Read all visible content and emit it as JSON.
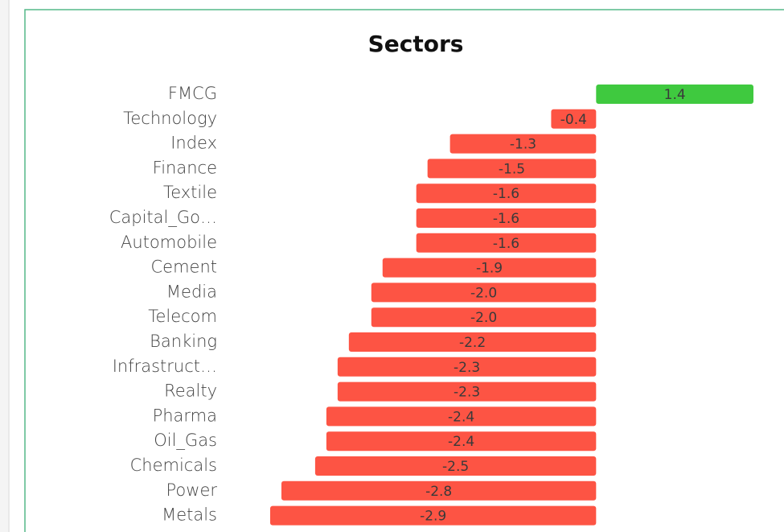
{
  "chart_data": {
    "type": "barh",
    "title": "Sectors",
    "categories": [
      "FMCG",
      "Technology",
      "Index",
      "Finance",
      "Textile",
      "Capital_Go…",
      "Automobile",
      "Cement",
      "Media",
      "Telecom",
      "Banking",
      "Infrastruct…",
      "Realty",
      "Pharma",
      "Oil_Gas",
      "Chemicals",
      "Power",
      "Metals"
    ],
    "values": [
      1.4,
      -0.4,
      -1.3,
      -1.5,
      -1.6,
      -1.6,
      -1.6,
      -1.9,
      -2.0,
      -2.0,
      -2.2,
      -2.3,
      -2.3,
      -2.4,
      -2.4,
      -2.5,
      -2.8,
      -2.9
    ],
    "value_labels": [
      "1.4",
      "-0.4",
      "-1.3",
      "-1.5",
      "-1.6",
      "-1.6",
      "-1.6",
      "-1.9",
      "-2.0",
      "-2.0",
      "-2.2",
      "-2.3",
      "-2.3",
      "-2.4",
      "-2.4",
      "-2.5",
      "-2.8",
      "-2.9"
    ],
    "positive_color": "#3fc93f",
    "negative_color": "#fd5444"
  }
}
